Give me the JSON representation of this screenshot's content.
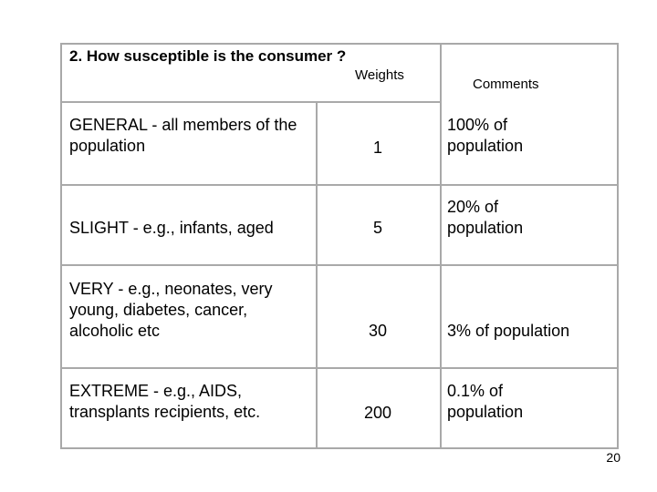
{
  "question": "2.  How susceptible is the consumer ?",
  "headers": {
    "weights": "Weights",
    "comments": "Comments"
  },
  "rows": [
    {
      "category": "GENERAL - all members of the population",
      "weight": "1",
      "comment": "100% of population"
    },
    {
      "category": "SLIGHT - e.g., infants, aged",
      "weight": "5",
      "comment": "20% of population"
    },
    {
      "category": "VERY - e.g., neonates, very young, diabetes, cancer, alcoholic etc",
      "weight": "30",
      "comment": "3% of population"
    },
    {
      "category": "EXTREME - e.g., AIDS, transplants recipients, etc.",
      "weight": "200",
      "comment": "0.1% of population"
    }
  ],
  "page_number": "20"
}
